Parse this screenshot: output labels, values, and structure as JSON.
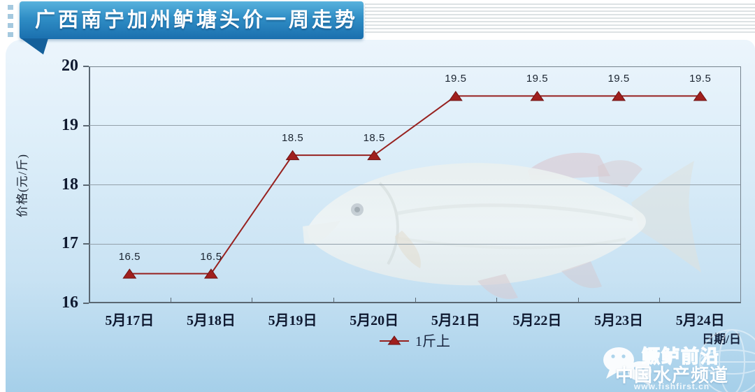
{
  "banner": {
    "title": "广西南宁加州鲈塘头价一周走势"
  },
  "chart_data": {
    "type": "line",
    "title": "广西南宁加州鲈塘头价一周走势",
    "categories": [
      "5月17日",
      "5月18日",
      "5月19日",
      "5月20日",
      "5月21日",
      "5月22日",
      "5月23日",
      "5月24日"
    ],
    "series": [
      {
        "name": "1斤上",
        "values": [
          16.5,
          16.5,
          18.5,
          18.5,
          19.5,
          19.5,
          19.5,
          19.5
        ],
        "color": "#97211f",
        "marker": "triangle"
      }
    ],
    "ylabel": "价格(元/斤)",
    "xlabel": "日期/日",
    "ylim": [
      16,
      20
    ],
    "yticks": [
      16,
      17,
      18,
      19,
      20
    ],
    "grid": true,
    "legend_position": "bottom",
    "data_labels": true
  },
  "axes": {
    "y_title": "价格(元/斤)",
    "x_title": "日期/日"
  },
  "watermark": {
    "brand_line1": "鳜鲈前沿",
    "brand_line2": "中国水产频道",
    "url": "www.fishfirst.cn",
    "icon": "wechat-icon"
  },
  "colors": {
    "banner_top": "#58b2dd",
    "banner_bottom": "#1a6fae",
    "banner_tail": "#14609b",
    "panel_top": "#ecf5fc",
    "panel_bottom": "#a5cfe9",
    "line": "#97211f",
    "marker_fill": "#a01f1d",
    "marker_stroke": "#6e1212",
    "axis": "#5a6772",
    "grid": "#93a0aa",
    "tick_text": "#101a30"
  }
}
